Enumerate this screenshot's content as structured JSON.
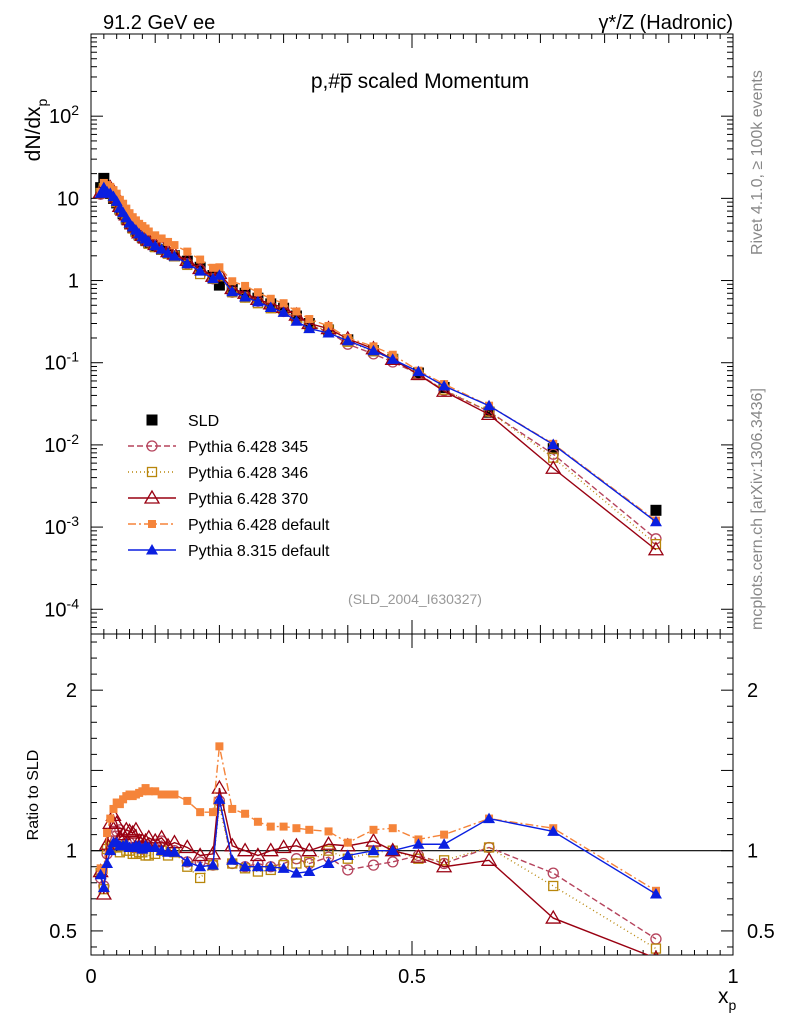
{
  "header": {
    "left": "91.2 GeV ee",
    "right": "γ*/Z (Hadronic)"
  },
  "side_labels": {
    "top": "Rivet 4.1.0, ≥ 100k events",
    "bottom": "mcplots.cern.ch [arXiv:1306.3436]"
  },
  "analysis_id": "(SLD_2004_I630327)",
  "colors": {
    "SLD": "#000000",
    "p345": "#b5435c",
    "p346": "#b8860b",
    "p370": "#990011",
    "p6def": "#f5843a",
    "p8def": "#0a1fe0"
  },
  "chart_data": [
    {
      "type": "scatter",
      "panel": "main",
      "title": "p,#p̄ scaled Momentum",
      "ylabel": "dN/dxp",
      "yscale": "log",
      "ylim": [
        5e-05,
        1000
      ],
      "xlim": [
        0,
        1
      ],
      "yticks": [
        {
          "v": 0.0001,
          "label": "10^-4"
        },
        {
          "v": 0.001,
          "label": "10^-3"
        },
        {
          "v": 0.01,
          "label": "10^-2"
        },
        {
          "v": 0.1,
          "label": "10^-1"
        },
        {
          "v": 1,
          "label": "1"
        },
        {
          "v": 10,
          "label": "10"
        },
        {
          "v": 100,
          "label": "10^2"
        }
      ],
      "legend": {
        "placement": "bottom-left",
        "entries": [
          {
            "key": "SLD",
            "label": "SLD"
          },
          {
            "key": "p345",
            "label": "Pythia 6.428 345"
          },
          {
            "key": "p346",
            "label": "Pythia 6.428 346"
          },
          {
            "key": "p370",
            "label": "Pythia 6.428 370"
          },
          {
            "key": "p6def",
            "label": "Pythia 6.428 default"
          },
          {
            "key": "p8def",
            "label": "Pythia 8.315 default"
          }
        ]
      },
      "x": [
        0.015,
        0.02,
        0.025,
        0.03,
        0.035,
        0.04,
        0.045,
        0.05,
        0.055,
        0.06,
        0.065,
        0.07,
        0.075,
        0.08,
        0.085,
        0.09,
        0.1,
        0.11,
        0.12,
        0.13,
        0.15,
        0.17,
        0.19,
        0.2,
        0.22,
        0.24,
        0.26,
        0.28,
        0.3,
        0.32,
        0.34,
        0.37,
        0.4,
        0.44,
        0.47,
        0.51,
        0.55,
        0.62,
        0.72,
        0.88
      ],
      "series": [
        {
          "key": "SLD",
          "name": "SLD",
          "marker": "square",
          "values": [
            13.5,
            17.5,
            13.0,
            11.5,
            10.0,
            8.8,
            7.4,
            6.5,
            5.6,
            4.9,
            4.4,
            4.0,
            3.6,
            3.35,
            3.1,
            2.88,
            2.6,
            2.4,
            2.18,
            2.0,
            1.72,
            1.45,
            1.15,
            0.88,
            0.78,
            0.7,
            0.61,
            0.52,
            0.46,
            0.37,
            0.3,
            0.25,
            0.19,
            0.14,
            0.11,
            0.075,
            0.05,
            0.025,
            0.009,
            0.0016
          ]
        },
        {
          "key": "p345",
          "name": "Pythia 6.428 345",
          "marker": "circle-open",
          "dash": "6,3",
          "values": [
            11.2,
            13.6,
            12.7,
            12.2,
            11.2,
            9.9,
            8.4,
            6.9,
            5.9,
            5.1,
            4.5,
            4.1,
            3.7,
            3.4,
            3.16,
            2.96,
            2.7,
            2.55,
            2.2,
            2.0,
            1.6,
            1.35,
            1.05,
            1.15,
            0.72,
            0.63,
            0.56,
            0.47,
            0.42,
            0.35,
            0.28,
            0.24,
            0.168,
            0.128,
            0.102,
            0.073,
            0.046,
            0.0255,
            0.0077,
            0.00072
          ]
        },
        {
          "key": "p346",
          "name": "Pythia 6.428 346",
          "marker": "square-open",
          "dash": "1,3",
          "values": [
            11.6,
            13.3,
            13.1,
            11.9,
            10.2,
            9.0,
            7.3,
            6.7,
            5.6,
            4.9,
            4.3,
            3.9,
            3.55,
            3.3,
            3.02,
            2.8,
            2.55,
            2.4,
            2.12,
            1.98,
            1.55,
            1.2,
            1.05,
            1.13,
            0.72,
            0.62,
            0.53,
            0.46,
            0.42,
            0.34,
            0.28,
            0.25,
            0.18,
            0.138,
            0.11,
            0.071,
            0.047,
            0.0255,
            0.007,
            0.00062
          ]
        },
        {
          "key": "p370",
          "name": "Pythia 6.428 370",
          "marker": "triangle-open",
          "values": [
            11.8,
            12.8,
            13.5,
            13.5,
            12.2,
            10.3,
            8.0,
            7.2,
            6.3,
            5.5,
            4.9,
            4.5,
            3.8,
            3.55,
            3.3,
            3.1,
            2.75,
            2.6,
            2.25,
            2.1,
            1.76,
            1.4,
            1.13,
            1.22,
            0.8,
            0.7,
            0.59,
            0.52,
            0.47,
            0.38,
            0.3,
            0.26,
            0.195,
            0.148,
            0.11,
            0.072,
            0.045,
            0.0235,
            0.0052,
            0.00053
          ]
        },
        {
          "key": "p6def",
          "name": "Pythia 6.428 default",
          "marker": "square-small",
          "dash": "8,3,2,3",
          "values": [
            12.0,
            15.4,
            14.5,
            13.8,
            12.6,
            11.4,
            9.6,
            8.6,
            7.5,
            6.6,
            5.9,
            5.4,
            4.9,
            4.6,
            4.3,
            3.95,
            3.55,
            3.25,
            2.95,
            2.7,
            2.25,
            1.8,
            1.43,
            1.45,
            0.98,
            0.86,
            0.72,
            0.6,
            0.53,
            0.42,
            0.34,
            0.28,
            0.2,
            0.158,
            0.125,
            0.08,
            0.055,
            0.03,
            0.0103,
            0.0012
          ]
        },
        {
          "key": "p8def",
          "name": "Pythia 8.315 default",
          "marker": "triangle",
          "values": [
            11.5,
            13.5,
            12.0,
            11.5,
            10.5,
            9.2,
            7.6,
            6.7,
            5.8,
            5.0,
            4.5,
            4.1,
            3.7,
            3.4,
            3.2,
            2.95,
            2.65,
            2.4,
            2.15,
            1.98,
            1.6,
            1.3,
            1.05,
            1.16,
            0.73,
            0.63,
            0.55,
            0.47,
            0.41,
            0.32,
            0.26,
            0.23,
            0.185,
            0.14,
            0.11,
            0.078,
            0.052,
            0.03,
            0.0101,
            0.00116
          ]
        }
      ]
    },
    {
      "type": "scatter",
      "panel": "ratio",
      "ylabel": "Ratio to SLD",
      "xlabel": "xp",
      "ylim": [
        0.35,
        2.35
      ],
      "xlim": [
        0,
        1
      ],
      "reference_line": 1,
      "yticks": [
        {
          "v": 0.5,
          "label": "0.5"
        },
        {
          "v": 1,
          "label": "1"
        },
        {
          "v": 2,
          "label": "2"
        }
      ],
      "xticks": [
        {
          "v": 0,
          "label": "0"
        },
        {
          "v": 0.5,
          "label": "0.5"
        },
        {
          "v": 1,
          "label": "1"
        }
      ],
      "x": [
        0.015,
        0.02,
        0.025,
        0.03,
        0.035,
        0.04,
        0.045,
        0.05,
        0.055,
        0.06,
        0.065,
        0.07,
        0.075,
        0.08,
        0.085,
        0.09,
        0.1,
        0.11,
        0.12,
        0.13,
        0.15,
        0.17,
        0.19,
        0.2,
        0.22,
        0.24,
        0.26,
        0.28,
        0.3,
        0.32,
        0.34,
        0.37,
        0.4,
        0.44,
        0.47,
        0.51,
        0.55,
        0.62,
        0.72,
        0.88
      ],
      "series": [
        {
          "key": "p345",
          "name": "Pythia 6.428 345",
          "marker": "circle-open",
          "dash": "6,3",
          "values": [
            0.83,
            0.78,
            0.98,
            1.06,
            1.12,
            1.12,
            1.13,
            1.06,
            1.05,
            1.05,
            1.02,
            1.02,
            1.03,
            1.01,
            1.02,
            1.03,
            1.04,
            1.06,
            1.01,
            1.0,
            0.93,
            0.93,
            0.91,
            1.31,
            0.92,
            0.9,
            0.92,
            0.9,
            0.92,
            0.95,
            0.92,
            0.96,
            0.88,
            0.91,
            0.93,
            0.97,
            0.92,
            1.02,
            0.86,
            0.45
          ]
        },
        {
          "key": "p346",
          "name": "Pythia 6.428 346",
          "marker": "square-open",
          "dash": "1,3",
          "values": [
            0.86,
            0.76,
            1.01,
            1.03,
            1.02,
            1.02,
            0.99,
            1.03,
            1.0,
            1.0,
            0.98,
            0.98,
            0.99,
            0.99,
            0.97,
            0.97,
            0.98,
            1.0,
            0.97,
            0.99,
            0.9,
            0.83,
            0.91,
            1.28,
            0.92,
            0.89,
            0.87,
            0.88,
            0.91,
            0.92,
            0.93,
            1.0,
            0.95,
            0.99,
            1.0,
            0.95,
            0.94,
            1.02,
            0.78,
            0.39
          ]
        },
        {
          "key": "p370",
          "name": "Pythia 6.428 370",
          "marker": "triangle-open",
          "values": [
            0.87,
            0.73,
            1.04,
            1.17,
            1.22,
            1.17,
            1.08,
            1.1,
            1.13,
            1.12,
            1.11,
            1.13,
            1.06,
            1.06,
            1.06,
            1.08,
            1.06,
            1.08,
            1.03,
            1.05,
            1.02,
            0.97,
            0.98,
            1.39,
            1.03,
            1.0,
            0.97,
            1.0,
            1.02,
            1.03,
            1.0,
            1.04,
            1.03,
            1.06,
            1.0,
            0.96,
            0.9,
            0.94,
            0.58,
            0.33
          ]
        },
        {
          "key": "p6def",
          "name": "Pythia 6.428 default",
          "marker": "square-small",
          "dash": "8,3,2,3",
          "values": [
            0.89,
            0.88,
            1.11,
            1.2,
            1.26,
            1.3,
            1.29,
            1.32,
            1.34,
            1.35,
            1.34,
            1.35,
            1.36,
            1.37,
            1.39,
            1.37,
            1.37,
            1.35,
            1.35,
            1.35,
            1.31,
            1.24,
            1.24,
            1.65,
            1.26,
            1.23,
            1.18,
            1.15,
            1.15,
            1.14,
            1.13,
            1.12,
            1.05,
            1.13,
            1.14,
            1.07,
            1.1,
            1.2,
            1.14,
            0.75
          ]
        },
        {
          "key": "p8def",
          "name": "Pythia 8.315 default",
          "marker": "triangle",
          "values": [
            0.85,
            0.77,
            0.92,
            1.0,
            1.05,
            1.05,
            1.03,
            1.03,
            1.04,
            1.02,
            1.02,
            1.03,
            1.03,
            1.01,
            1.03,
            1.02,
            1.02,
            1.0,
            0.99,
            0.99,
            0.93,
            0.9,
            0.91,
            1.32,
            0.94,
            0.9,
            0.9,
            0.9,
            0.89,
            0.86,
            0.87,
            0.92,
            0.97,
            1.0,
            1.0,
            1.04,
            1.04,
            1.2,
            1.12,
            0.73
          ]
        }
      ]
    }
  ]
}
